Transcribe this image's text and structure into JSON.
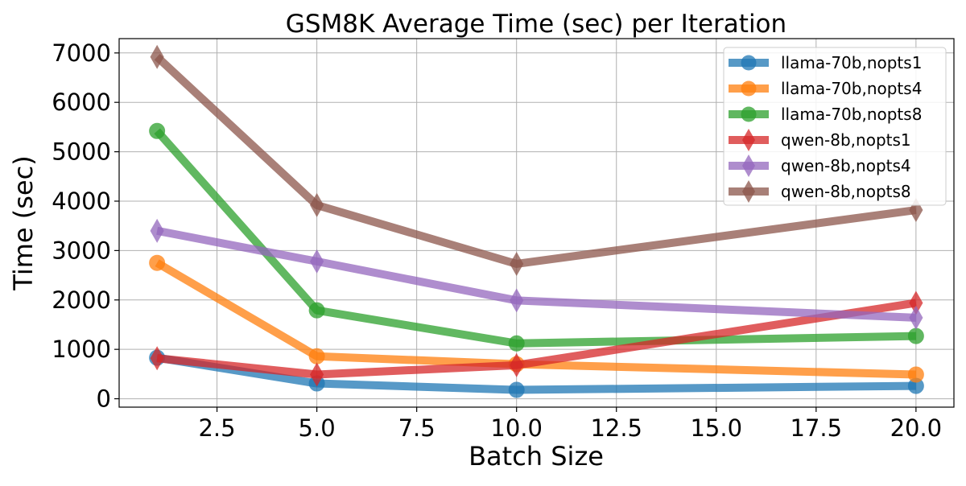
{
  "chart_data": {
    "type": "line",
    "title": "GSM8K Average Time (sec) per Iteration",
    "xlabel": "Batch Size",
    "ylabel": "Time (sec)",
    "x": [
      1,
      5,
      10,
      20
    ],
    "xlim": [
      0.05,
      20.95
    ],
    "ylim": [
      -170,
      7290
    ],
    "xticks": [
      2.5,
      5.0,
      7.5,
      10.0,
      12.5,
      15.0,
      17.5,
      20.0
    ],
    "xtick_labels": [
      "2.5",
      "5.0",
      "7.5",
      "10.0",
      "12.5",
      "15.0",
      "17.5",
      "20.0"
    ],
    "yticks": [
      0,
      1000,
      2000,
      3000,
      4000,
      5000,
      6000,
      7000
    ],
    "ytick_labels": [
      "0",
      "1000",
      "2000",
      "3000",
      "4000",
      "5000",
      "6000",
      "7000"
    ],
    "grid": true,
    "legend_position": "top-right",
    "series": [
      {
        "name": "llama-70b,nopts1",
        "marker": "circle",
        "color": "#1f77b4",
        "values": [
          830,
          310,
          180,
          260
        ]
      },
      {
        "name": "llama-70b,nopts4",
        "marker": "circle",
        "color": "#ff7f0e",
        "values": [
          2750,
          860,
          700,
          490
        ]
      },
      {
        "name": "llama-70b,nopts8",
        "marker": "circle",
        "color": "#2ca02c",
        "values": [
          5420,
          1790,
          1120,
          1270
        ]
      },
      {
        "name": "qwen-8b,nopts1",
        "marker": "diamond",
        "color": "#d62728",
        "values": [
          820,
          490,
          680,
          1940
        ]
      },
      {
        "name": "qwen-8b,nopts4",
        "marker": "diamond",
        "color": "#9467bd",
        "values": [
          3400,
          2780,
          1990,
          1640
        ]
      },
      {
        "name": "qwen-8b,nopts8",
        "marker": "diamond",
        "color": "#8c564b",
        "values": [
          6920,
          3920,
          2730,
          3820
        ]
      }
    ]
  }
}
